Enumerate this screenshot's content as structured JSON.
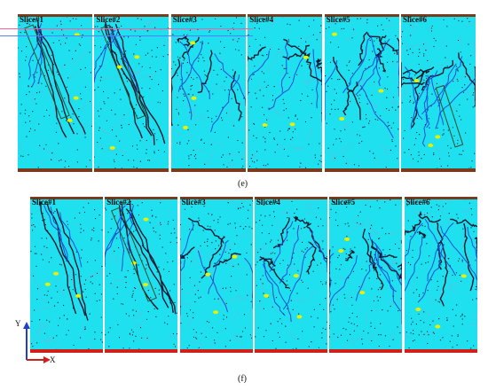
{
  "rows": [
    {
      "caption": "(e)",
      "slices": [
        {
          "label": "Slice#1"
        },
        {
          "label": "Slice#2"
        },
        {
          "label": "Slice#3"
        },
        {
          "label": "Slice#4"
        },
        {
          "label": "Slice#5"
        },
        {
          "label": "Slice#6"
        }
      ]
    },
    {
      "caption": "(f)",
      "slices": [
        {
          "label": "Slice#1"
        },
        {
          "label": "Slice#2"
        },
        {
          "label": "Slice#3"
        },
        {
          "label": "Slice#4"
        },
        {
          "label": "Slice#5"
        },
        {
          "label": "Slice#6"
        }
      ]
    }
  ],
  "axes": {
    "y_label": "Y",
    "x_label": "X"
  },
  "colors": {
    "background": "#1ee0ee",
    "crack": "#0b1a33",
    "crack_blue": "#1d4fd8",
    "highlight": "#e8f000",
    "bar_brown": "#7a3a1c",
    "bar_red": "#d0201a",
    "overlay_line": "#ff5aa0",
    "axis": "#1f3fd0"
  }
}
